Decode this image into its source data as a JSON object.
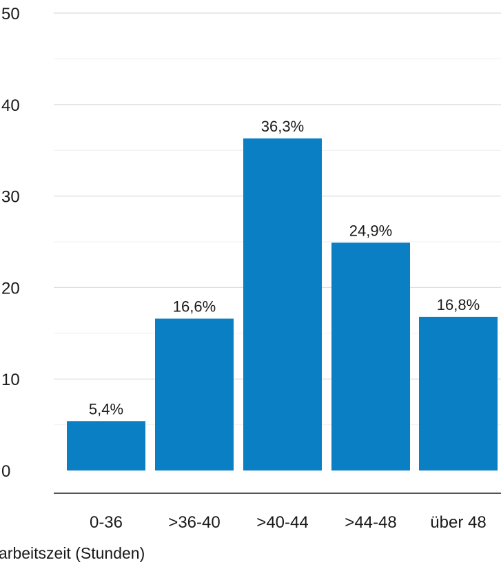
{
  "chart_data": {
    "type": "bar",
    "categories": [
      "0-36",
      ">36-40",
      ">40-44",
      ">44-48",
      "über 48"
    ],
    "values": [
      5.4,
      16.6,
      36.3,
      24.9,
      16.8
    ],
    "value_labels": [
      "5,4%",
      "16,6%",
      "36,3%",
      "24,9%",
      "16,8%"
    ],
    "xlabel": "arbeitszeit (Stunden)",
    "ylabel": "",
    "ylim": [
      0,
      50
    ],
    "yticks": [
      0,
      10,
      20,
      30,
      40,
      50
    ],
    "grid": true,
    "colors": {
      "bar": "#0a7fc4",
      "grid": "#dcdcdc",
      "minor_grid": "#efefef",
      "axis": "#555555"
    }
  }
}
